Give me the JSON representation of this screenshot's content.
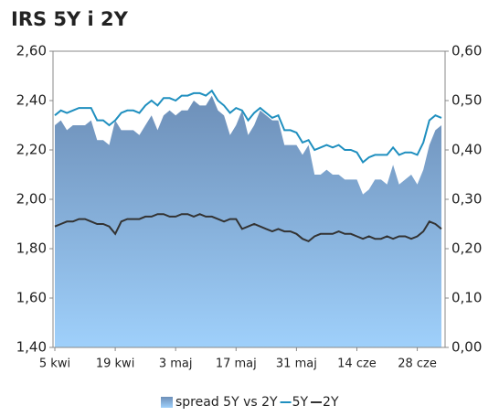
{
  "chart_data": {
    "type": "line",
    "title": "IRS 5Y i 2Y",
    "categories": [
      "5 kwi",
      null,
      null,
      null,
      null,
      null,
      null,
      null,
      null,
      null,
      "19 kwi",
      null,
      null,
      null,
      null,
      null,
      null,
      null,
      null,
      null,
      "3 maj",
      null,
      null,
      null,
      null,
      null,
      null,
      null,
      null,
      null,
      "17 maj",
      null,
      null,
      null,
      null,
      null,
      null,
      null,
      null,
      null,
      "31 maj",
      null,
      null,
      null,
      null,
      null,
      null,
      null,
      null,
      null,
      "14 cze",
      null,
      null,
      null,
      null,
      null,
      null,
      null,
      null,
      null,
      "28 cze",
      null,
      null,
      null,
      null
    ],
    "series": [
      {
        "name": "spread 5Y vs 2Y",
        "type": "area",
        "axis": "y2",
        "color": "#6f93bd",
        "values": [
          0.45,
          0.46,
          0.44,
          0.45,
          0.45,
          0.45,
          0.46,
          0.42,
          0.42,
          0.41,
          0.46,
          0.44,
          0.44,
          0.44,
          0.43,
          0.45,
          0.47,
          0.44,
          0.47,
          0.48,
          0.47,
          0.48,
          0.48,
          0.5,
          0.49,
          0.49,
          0.51,
          0.48,
          0.47,
          0.43,
          0.45,
          0.48,
          0.43,
          0.45,
          0.48,
          0.47,
          0.46,
          0.46,
          0.41,
          0.41,
          0.41,
          0.39,
          0.41,
          0.35,
          0.35,
          0.36,
          0.35,
          0.35,
          0.34,
          0.34,
          0.34,
          0.31,
          0.32,
          0.34,
          0.34,
          0.33,
          0.37,
          0.33,
          0.34,
          0.35,
          0.33,
          0.36,
          0.41,
          0.44,
          0.45
        ]
      },
      {
        "name": "5Y",
        "type": "line",
        "color": "#1f8fbf",
        "values": [
          2.34,
          2.36,
          2.35,
          2.36,
          2.37,
          2.37,
          2.37,
          2.32,
          2.32,
          2.3,
          2.32,
          2.35,
          2.36,
          2.36,
          2.35,
          2.38,
          2.4,
          2.38,
          2.41,
          2.41,
          2.4,
          2.42,
          2.42,
          2.43,
          2.43,
          2.42,
          2.44,
          2.4,
          2.38,
          2.35,
          2.37,
          2.36,
          2.32,
          2.35,
          2.37,
          2.35,
          2.33,
          2.34,
          2.28,
          2.28,
          2.27,
          2.23,
          2.24,
          2.2,
          2.21,
          2.22,
          2.21,
          2.22,
          2.2,
          2.2,
          2.19,
          2.15,
          2.17,
          2.18,
          2.18,
          2.18,
          2.21,
          2.18,
          2.19,
          2.19,
          2.18,
          2.23,
          2.32,
          2.34,
          2.33
        ]
      },
      {
        "name": "2Y",
        "type": "line",
        "color": "#333333",
        "values": [
          1.89,
          1.9,
          1.91,
          1.91,
          1.92,
          1.92,
          1.91,
          1.9,
          1.9,
          1.89,
          1.86,
          1.91,
          1.92,
          1.92,
          1.92,
          1.93,
          1.93,
          1.94,
          1.94,
          1.93,
          1.93,
          1.94,
          1.94,
          1.93,
          1.94,
          1.93,
          1.93,
          1.92,
          1.91,
          1.92,
          1.92,
          1.88,
          1.89,
          1.9,
          1.89,
          1.88,
          1.87,
          1.88,
          1.87,
          1.87,
          1.86,
          1.84,
          1.83,
          1.85,
          1.86,
          1.86,
          1.86,
          1.87,
          1.86,
          1.86,
          1.85,
          1.84,
          1.85,
          1.84,
          1.84,
          1.85,
          1.84,
          1.85,
          1.85,
          1.84,
          1.85,
          1.87,
          1.91,
          1.9,
          1.88
        ]
      }
    ],
    "ylim": [
      1.4,
      2.6
    ],
    "yticks": [
      {
        "value": 1.4,
        "label": "1,40"
      },
      {
        "value": 1.6,
        "label": "1,60"
      },
      {
        "value": 1.8,
        "label": "1,80"
      },
      {
        "value": 2.0,
        "label": "2,00"
      },
      {
        "value": 2.2,
        "label": "2,20"
      },
      {
        "value": 2.4,
        "label": "2,40"
      },
      {
        "value": 2.6,
        "label": "2,60"
      }
    ],
    "y2lim": [
      0,
      0.6
    ],
    "y2ticks": [
      {
        "value": 0,
        "label": "0,00"
      },
      {
        "value": 0.1,
        "label": "0,10"
      },
      {
        "value": 0.2,
        "label": "0,20"
      },
      {
        "value": 0.3,
        "label": "0,30"
      },
      {
        "value": 0.4,
        "label": "0,40"
      },
      {
        "value": 0.5,
        "label": "0,50"
      },
      {
        "value": 0.6,
        "label": "0,60"
      }
    ],
    "grid": false,
    "legend": "bottom"
  }
}
